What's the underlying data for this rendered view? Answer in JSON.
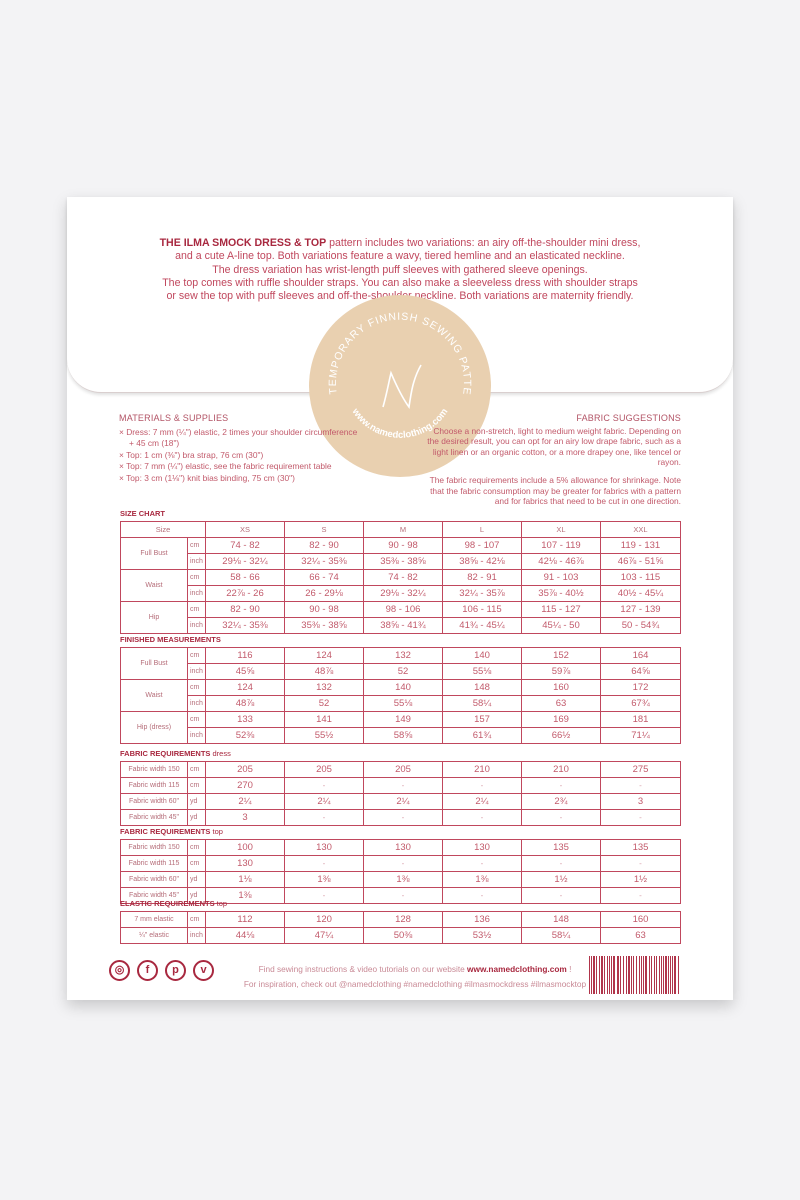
{
  "intro": {
    "title": "THE ILMA SMOCK DRESS & TOP",
    "lines": [
      " pattern includes two variations: an airy off-the-shoulder mini dress,",
      "and a cute A-line top. Both variations feature a wavy, tiered hemline and an elasticated neckline.",
      "The dress variation has wrist-length puff sleeves with gathered sleeve openings.",
      "The top comes with ruffle shoulder straps. You can also make a sleeveless dress with shoulder straps",
      "or sew the top with puff sleeves and off-the-shoulder neckline. Both variations are maternity friendly."
    ]
  },
  "seal": {
    "arc_text": "CONTEMPORARY FINNISH SEWING PATTERNS",
    "url": "www.namedclothing.com",
    "logo": "N",
    "color": "#e9d0b0"
  },
  "materials": {
    "title": "MATERIALS & SUPPLIES",
    "items": [
      "× Dress: 7 mm (¼\") elastic, 2 times your shoulder circumference + 45 cm (18\")",
      "× Top: 1 cm (⅜\") bra strap, 76 cm (30\")",
      "× Top: 7 mm (¼\") elastic, see the fabric requirement table",
      "× Top: 3 cm (1⅛\") knit bias binding, 75 cm (30\")"
    ]
  },
  "fabric_suggestions": {
    "title": "FABRIC SUGGESTIONS",
    "p1": "Choose a non-stretch, light to medium weight fabric. Depending on the desired result, you can opt for an airy low drape fabric, such as a light linen or an organic cotton, or a more drapey one, like tencel or rayon.",
    "p2": "The fabric requirements include a 5% allowance for shrinkage. Note that the fabric consumption may be greater for fabrics with a pattern and for fabrics that need to be cut in one direction."
  },
  "tables": [
    {
      "title": "SIZE CHART",
      "suffix": "",
      "header": [
        "Size",
        "XS",
        "S",
        "M",
        "L",
        "XL",
        "XXL"
      ],
      "rows": [
        [
          "Full Bust",
          "cm",
          "74 - 82",
          "82 - 90",
          "90 - 98",
          "98 - 107",
          "107 - 119",
          "119 - 131"
        ],
        [
          "",
          "inch",
          "29⅛ - 32¼",
          "32¼ - 35⅜",
          "35⅜ - 38⅝",
          "38⅝ - 42⅛",
          "42⅛ - 46⅞",
          "46⅞ - 51⅝"
        ],
        [
          "Waist",
          "cm",
          "58 - 66",
          "66 - 74",
          "74 - 82",
          "82 - 91",
          "91 - 103",
          "103 - 115"
        ],
        [
          "",
          "inch",
          "22⅞ - 26",
          "26 - 29⅛",
          "29⅛ - 32¼",
          "32¼ - 35⅞",
          "35⅞ - 40½",
          "40½ - 45¼"
        ],
        [
          "Hip",
          "cm",
          "82 - 90",
          "90 - 98",
          "98 - 106",
          "106 - 115",
          "115 - 127",
          "127 - 139"
        ],
        [
          "",
          "inch",
          "32¼ - 35⅜",
          "35⅜ - 38⅝",
          "38⅝ - 41¾",
          "41¾ - 45¼",
          "45¼ - 50",
          "50 - 54¾"
        ]
      ]
    },
    {
      "title": "FINISHED MEASUREMENTS",
      "suffix": "",
      "rows": [
        [
          "Full Bust",
          "cm",
          "116",
          "124",
          "132",
          "140",
          "152",
          "164"
        ],
        [
          "",
          "inch",
          "45⅝",
          "48⅞",
          "52",
          "55⅛",
          "59⅞",
          "64⅝"
        ],
        [
          "Waist",
          "cm",
          "124",
          "132",
          "140",
          "148",
          "160",
          "172"
        ],
        [
          "",
          "inch",
          "48⅞",
          "52",
          "55⅛",
          "58¼",
          "63",
          "67¾"
        ],
        [
          "Hip (dress)",
          "cm",
          "133",
          "141",
          "149",
          "157",
          "169",
          "181"
        ],
        [
          "",
          "inch",
          "52⅜",
          "55½",
          "58⅝",
          "61¾",
          "66½",
          "71¼"
        ]
      ]
    },
    {
      "title": "FABRIC REQUIREMENTS",
      "suffix": " dress",
      "rows": [
        [
          "Fabric width 150",
          "cm",
          "205",
          "205",
          "205",
          "210",
          "210",
          "275"
        ],
        [
          "Fabric width 115",
          "cm",
          "270",
          "-",
          "-",
          "-",
          "-",
          "-"
        ],
        [
          "Fabric width 60\"",
          "yd",
          "2¼",
          "2¼",
          "2¼",
          "2¼",
          "2¾",
          "3"
        ],
        [
          "Fabric width 45\"",
          "yd",
          "3",
          "-",
          "-",
          "-",
          "-",
          "-"
        ]
      ]
    },
    {
      "title": "FABRIC REQUIREMENTS",
      "suffix": " top",
      "rows": [
        [
          "Fabric width 150",
          "cm",
          "100",
          "130",
          "130",
          "130",
          "135",
          "135"
        ],
        [
          "Fabric width 115",
          "cm",
          "130",
          "-",
          "-",
          "-",
          "-",
          "-"
        ],
        [
          "Fabric width 60\"",
          "yd",
          "1⅛",
          "1⅜",
          "1⅜",
          "1⅜",
          "1½",
          "1½"
        ],
        [
          "Fabric width 45\"",
          "yd",
          "1⅜",
          "-",
          "-",
          "-",
          "-",
          "-"
        ]
      ]
    },
    {
      "title": "ELASTIC REQUIREMENTS",
      "suffix": " top",
      "rows": [
        [
          "7 mm elastic",
          "cm",
          "112",
          "120",
          "128",
          "136",
          "148",
          "160"
        ],
        [
          "¼\" elastic",
          "inch",
          "44⅛",
          "47¼",
          "50⅜",
          "53½",
          "58¼",
          "63"
        ]
      ]
    }
  ],
  "footer": {
    "line1": "Find sewing instructions & video tutorials on our website ",
    "website": "www.namedclothing.com",
    "line1_end": " !",
    "line2": "For inspiration, check out @namedclothing #namedclothing #ilmasmockdress #ilmasmocktop",
    "social": [
      {
        "icon": "instagram-icon",
        "glyph": "◎"
      },
      {
        "icon": "facebook-icon",
        "glyph": "f"
      },
      {
        "icon": "pinterest-icon",
        "glyph": "p"
      },
      {
        "icon": "vimeo-icon",
        "glyph": "v"
      }
    ]
  },
  "colors": {
    "accent": "#a8283f",
    "text": "#c25a6b",
    "seal": "#e9d0b0"
  }
}
